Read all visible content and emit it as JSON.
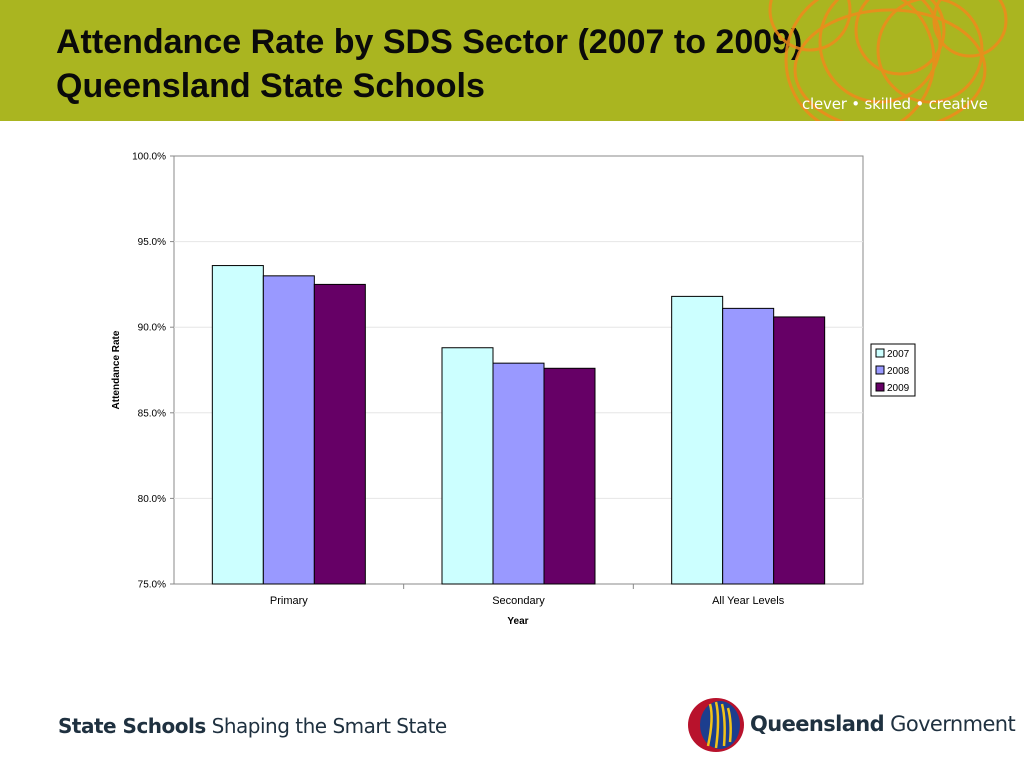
{
  "header": {
    "title": "Attendance Rate by SDS Sector (2007 to 2009) Queensland State Schools",
    "tagline": "clever • skilled • creative"
  },
  "footer": {
    "left_bold": "State Schools",
    "left_rest": " Shaping the Smart State",
    "logo_bold": "Queensland",
    "logo_rest": " Government"
  },
  "colors": {
    "header_bg": "#aab520",
    "swirl": "#f08a1c",
    "series_2007": "#ccffff",
    "series_2008": "#9999ff",
    "series_2009": "#660066"
  },
  "chart_data": {
    "type": "bar",
    "title": "",
    "xlabel": "Year",
    "ylabel": "Attendance Rate",
    "categories": [
      "Primary",
      "Secondary",
      "All Year Levels"
    ],
    "series": [
      {
        "name": "2007",
        "values": [
          93.6,
          88.8,
          91.8
        ],
        "color": "#ccffff"
      },
      {
        "name": "2008",
        "values": [
          93.0,
          87.9,
          91.1
        ],
        "color": "#9999ff"
      },
      {
        "name": "2009",
        "values": [
          92.5,
          87.6,
          90.6
        ],
        "color": "#660066"
      }
    ],
    "ylim": [
      75,
      100
    ],
    "yticks": [
      "75.0%",
      "80.0%",
      "85.0%",
      "90.0%",
      "95.0%",
      "100.0%"
    ],
    "grid": true,
    "legend_position": "right"
  }
}
